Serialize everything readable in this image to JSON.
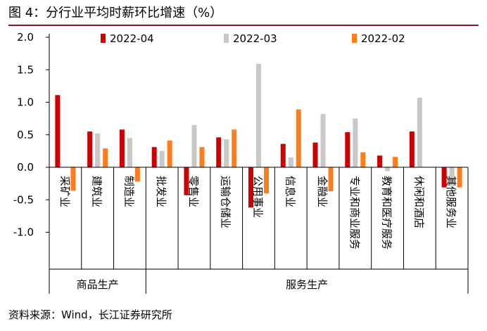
{
  "header": {
    "title": "图 4：分行业平均时薪环比增速（%）"
  },
  "footer": {
    "source": "资料来源：Wind，长江证券研究所"
  },
  "chart_data": {
    "type": "bar",
    "title": "分行业平均时薪环比增速（%）",
    "ylim": [
      -1.5,
      2.0
    ],
    "yticks": [
      2.0,
      1.5,
      1.0,
      0.5,
      0.0,
      -0.5,
      -1.0
    ],
    "ytick_labels": [
      "2.0",
      "1.5",
      "1.0",
      "0.5",
      "0.0",
      "-0.5",
      "-1.0"
    ],
    "categories": [
      "采矿业",
      "建筑业",
      "制造业",
      "批发业",
      "零售业",
      "运输仓储业",
      "公用事业",
      "信息业",
      "金融业",
      "专业和商业服务",
      "教育和医疗服务",
      "休闲和酒店",
      "其他服务业"
    ],
    "groups": [
      {
        "label": "商品生产",
        "categories": [
          "采矿业",
          "建筑业",
          "制造业"
        ]
      },
      {
        "label": "服务生产",
        "categories": [
          "批发业",
          "零售业",
          "运输仓储业",
          "公用事业",
          "信息业",
          "金融业",
          "专业和商业服务",
          "教育和医疗服务",
          "休闲和酒店",
          "其他服务业"
        ]
      }
    ],
    "series": [
      {
        "name": "2022-04",
        "color": "#cc0000",
        "values": [
          1.11,
          0.55,
          0.58,
          0.31,
          -0.43,
          0.46,
          -0.62,
          0.36,
          0.38,
          0.54,
          0.18,
          0.55,
          -0.31
        ]
      },
      {
        "name": "2022-03",
        "color": "#c8c8c8",
        "values": [
          0.0,
          0.52,
          0.45,
          0.25,
          0.65,
          0.43,
          1.59,
          0.15,
          0.82,
          0.75,
          -0.06,
          1.07,
          -0.29
        ]
      },
      {
        "name": "2022-02",
        "color": "#ff7c1f",
        "values": [
          -0.36,
          0.29,
          -0.22,
          0.41,
          0.31,
          0.58,
          -0.4,
          0.89,
          -0.37,
          0.23,
          0.16,
          0.0,
          -0.31
        ]
      }
    ],
    "legend": {
      "position": "top"
    }
  }
}
